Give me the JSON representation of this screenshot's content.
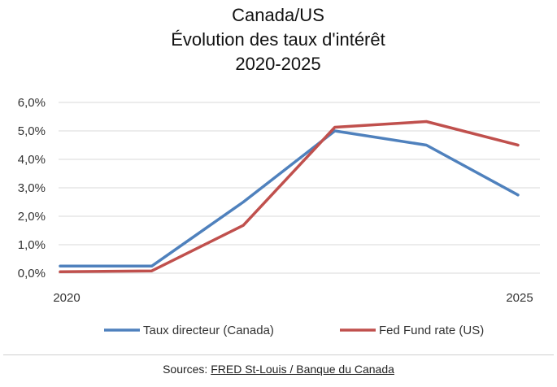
{
  "chart_data": {
    "type": "line",
    "title_lines": [
      "Canada/US",
      "Évolution des taux d'intérêt",
      "2020-2025"
    ],
    "x": [
      2020,
      2021,
      2022,
      2023,
      2024,
      2025
    ],
    "x_tick_labels": [
      "2020",
      "",
      "",
      "",
      "",
      "2025"
    ],
    "ylim": [
      0,
      6
    ],
    "y_tick_labels": [
      "0,0%",
      "1,0%",
      "2,0%",
      "3,0%",
      "4,0%",
      "5,0%",
      "6,0%"
    ],
    "y_ticks": [
      0,
      1,
      2,
      3,
      4,
      5,
      6
    ],
    "grid": true,
    "legend_position": "bottom",
    "series": [
      {
        "name": "Taux directeur (Canada)",
        "color": "#4f81bd",
        "values": [
          0.25,
          0.25,
          2.5,
          5.0,
          4.5,
          2.75
        ]
      },
      {
        "name": "Fed Fund rate (US)",
        "color": "#c0504d",
        "values": [
          0.05,
          0.08,
          1.68,
          5.13,
          5.33,
          4.5
        ]
      }
    ]
  },
  "source": {
    "prefix": "Sources: ",
    "link_text": "FRED St-Louis / Banque du Canada"
  }
}
